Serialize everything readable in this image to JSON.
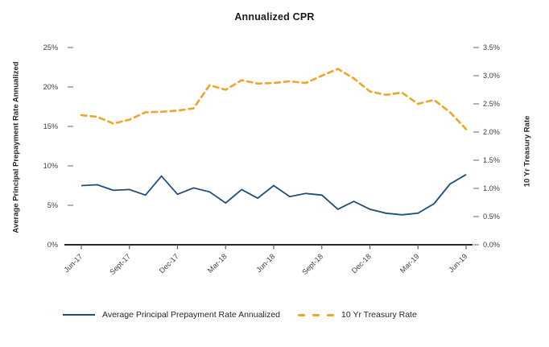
{
  "title": "Annualized CPR",
  "left_axis": {
    "title": "Average Principal Prepayment Rate Annualized",
    "min": 0,
    "max": 25,
    "step": 5,
    "tick_labels": [
      "0%",
      "5%",
      "10%",
      "15%",
      "20%",
      "25%"
    ]
  },
  "right_axis": {
    "title": "10 Yr Treasury Rate",
    "min": 0,
    "max": 3.5,
    "step": 0.5,
    "tick_labels": [
      "0.0%",
      "0.5%",
      "1.0%",
      "1.5%",
      "2.0%",
      "2.5%",
      "3.0%",
      "3.5%"
    ]
  },
  "x_axis": {
    "tick_labels": [
      "Jun-17",
      "Sept-17",
      "Dec-17",
      "Mar-18",
      "Jun-18",
      "Sept-18",
      "Dec-18",
      "Mar-19",
      "Jun-19"
    ],
    "months_per_tick": 3
  },
  "legend": {
    "items": [
      {
        "label": "Average Principal Prepayment Rate Annualized",
        "color": "#1F4E79",
        "style": "solid"
      },
      {
        "label": "10 Yr Treasury Rate",
        "color": "#EFA42A",
        "style": "dashed"
      }
    ]
  },
  "colors": {
    "cpr_line": "#1F4E79",
    "treasury_line": "#EFA42A",
    "axis_line": "#262626",
    "tick_mark": "#7f7f7f",
    "tick_text": "#3f3f3f"
  },
  "chart_data": {
    "type": "line",
    "title": "Annualized CPR",
    "x": [
      "Jun-17",
      "Jul-17",
      "Aug-17",
      "Sep-17",
      "Oct-17",
      "Nov-17",
      "Dec-17",
      "Jan-18",
      "Feb-18",
      "Mar-18",
      "Apr-18",
      "May-18",
      "Jun-18",
      "Jul-18",
      "Aug-18",
      "Sep-18",
      "Oct-18",
      "Nov-18",
      "Dec-18",
      "Jan-19",
      "Feb-19",
      "Mar-19",
      "Apr-19",
      "May-19",
      "Jun-19"
    ],
    "series": [
      {
        "name": "Average Principal Prepayment Rate Annualized",
        "axis": "left",
        "unit": "%",
        "color": "#1F4E79",
        "style": "solid",
        "values": [
          7.5,
          7.6,
          6.9,
          7.0,
          6.3,
          8.7,
          6.4,
          7.2,
          6.7,
          5.3,
          7.0,
          5.9,
          7.5,
          6.1,
          6.5,
          6.3,
          4.5,
          5.5,
          4.5,
          4.0,
          3.8,
          4.0,
          5.2,
          7.7,
          8.9
        ]
      },
      {
        "name": "10 Yr Treasury Rate",
        "axis": "right",
        "unit": "%",
        "color": "#EFA42A",
        "style": "dashed",
        "values": [
          2.3,
          2.27,
          2.15,
          2.22,
          2.35,
          2.36,
          2.38,
          2.42,
          2.83,
          2.75,
          2.92,
          2.86,
          2.87,
          2.9,
          2.87,
          3.0,
          3.12,
          2.95,
          2.72,
          2.66,
          2.7,
          2.5,
          2.57,
          2.35,
          2.05
        ]
      }
    ],
    "left_ylim": [
      0,
      25
    ],
    "right_ylim": [
      0,
      3.5
    ],
    "grid": false,
    "legend_position": "bottom"
  }
}
